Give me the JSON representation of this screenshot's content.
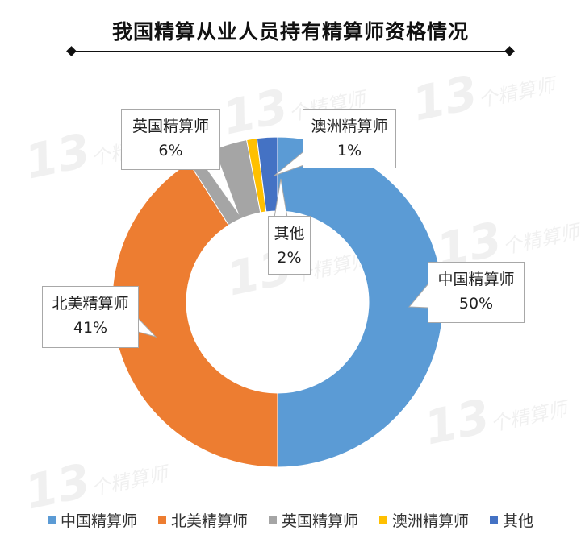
{
  "title": "我国精算从业人员持有精算师资格情况",
  "watermark": {
    "number": "13",
    "text": "个精算师"
  },
  "chart_data": {
    "type": "pie",
    "variant": "donut",
    "title": "我国精算从业人员持有精算师资格情况",
    "categories": [
      "中国精算师",
      "北美精算师",
      "英国精算师",
      "澳洲精算师",
      "其他"
    ],
    "values": [
      50,
      41,
      6,
      1,
      2
    ],
    "unit": "%",
    "colors": [
      "#5b9bd5",
      "#ed7d31",
      "#a5a5a5",
      "#ffc000",
      "#4472c4"
    ],
    "legend_position": "bottom",
    "start_angle_deg": 0,
    "direction": "clockwise",
    "note": "Slices drawn in order 中国 → 北美 → 英国 → 澳洲 → 其他 clockwise from 12 o'clock"
  },
  "labels": {
    "cn": {
      "name": "中国精算师",
      "pct": "50%"
    },
    "na": {
      "name": "北美精算师",
      "pct": "41%"
    },
    "uk": {
      "name": "英国精算师",
      "pct": "6%"
    },
    "au": {
      "name": "澳洲精算师",
      "pct": "1%"
    },
    "other": {
      "name": "其他",
      "pct": "2%"
    }
  },
  "legend": [
    {
      "label": "中国精算师",
      "color": "#5b9bd5"
    },
    {
      "label": "北美精算师",
      "color": "#ed7d31"
    },
    {
      "label": "英国精算师",
      "color": "#a5a5a5"
    },
    {
      "label": "澳洲精算师",
      "color": "#ffc000"
    },
    {
      "label": "其他",
      "color": "#4472c4"
    }
  ]
}
